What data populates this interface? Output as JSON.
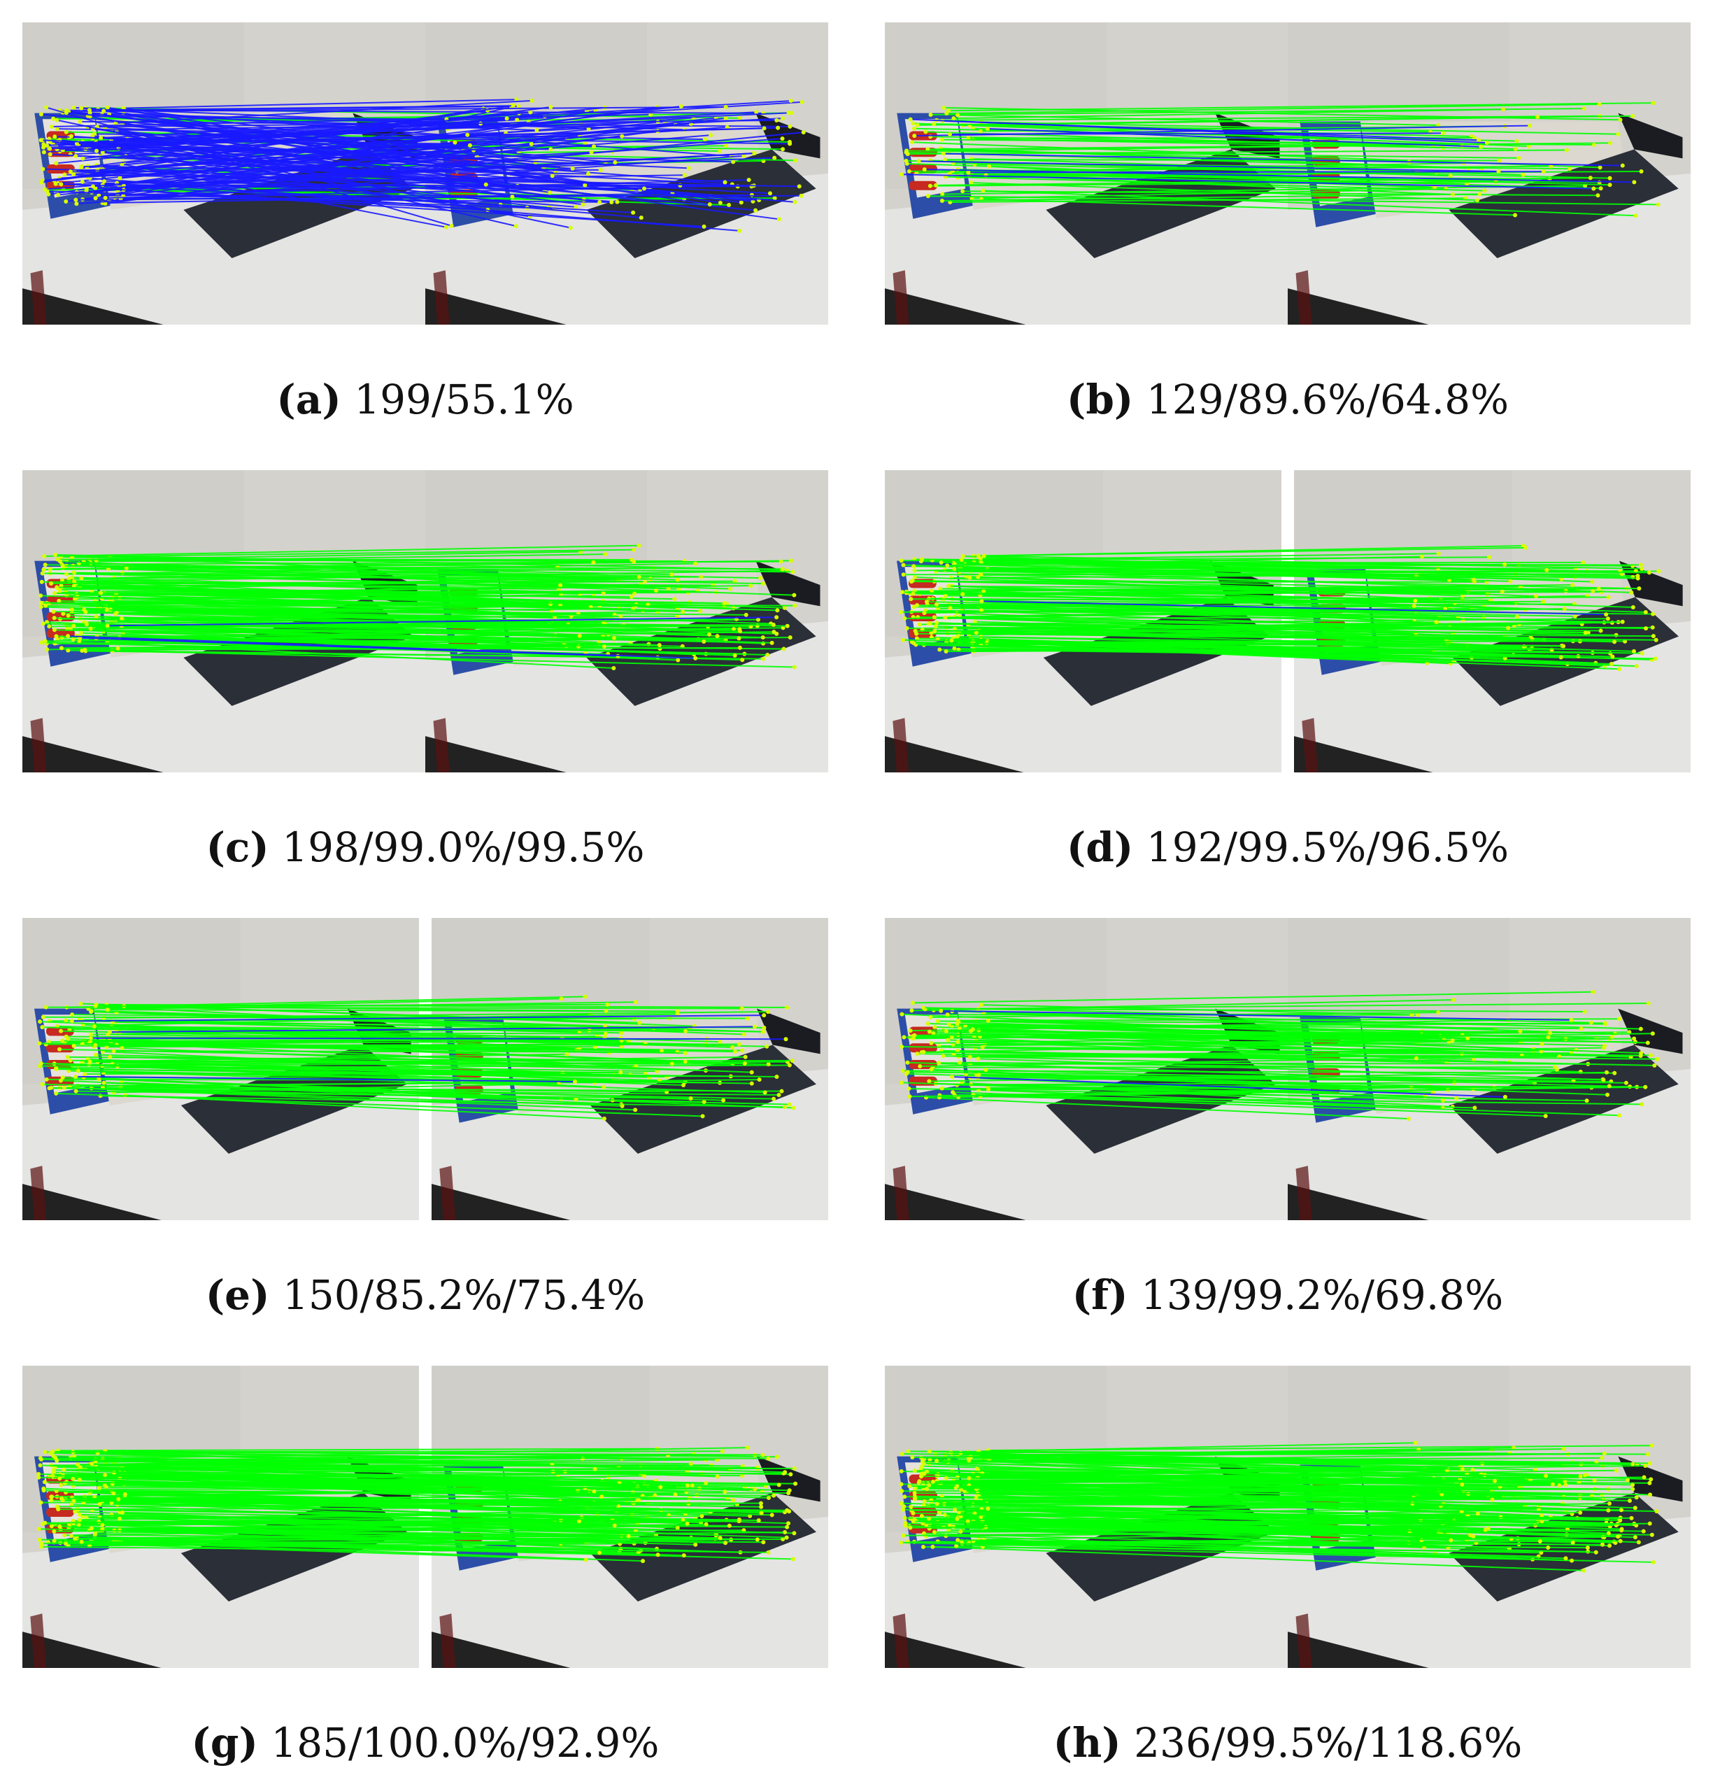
{
  "panels": [
    {
      "letter": "a",
      "stats": "199/55.1%",
      "split": false,
      "blue_lines": 140,
      "green_lines": 22
    },
    {
      "letter": "b",
      "stats": "129/89.6%/64.8%",
      "split": false,
      "blue_lines": 10,
      "green_lines": 60
    },
    {
      "letter": "c",
      "stats": "198/99.0%/99.5%",
      "split": false,
      "blue_lines": 3,
      "green_lines": 150
    },
    {
      "letter": "d",
      "stats": "192/99.5%/96.5%",
      "split": true,
      "blue_lines": 1,
      "green_lines": 150
    },
    {
      "letter": "e",
      "stats": "150/85.2%/75.4%",
      "split": true,
      "blue_lines": 4,
      "green_lines": 110
    },
    {
      "letter": "f",
      "stats": "139/99.2%/69.8%",
      "split": false,
      "blue_lines": 2,
      "green_lines": 100
    },
    {
      "letter": "g",
      "stats": "185/100.0%/92.9%",
      "split": true,
      "blue_lines": 0,
      "green_lines": 180
    },
    {
      "letter": "h",
      "stats": "236/99.5%/118.6%",
      "split": false,
      "blue_lines": 0,
      "green_lines": 190
    }
  ],
  "colors": {
    "match_correct": "#00ff00",
    "match_wrong": "#1a1aff",
    "keypoint": "#d9ff00",
    "wall": "#d4d2cc",
    "table": "#e4e4e2",
    "box_dark": "#2a2f38",
    "box_light": "#e6e3dc",
    "box_red": "#c62a20",
    "box_blue": "#2c4ea8",
    "floor": "#222222"
  }
}
